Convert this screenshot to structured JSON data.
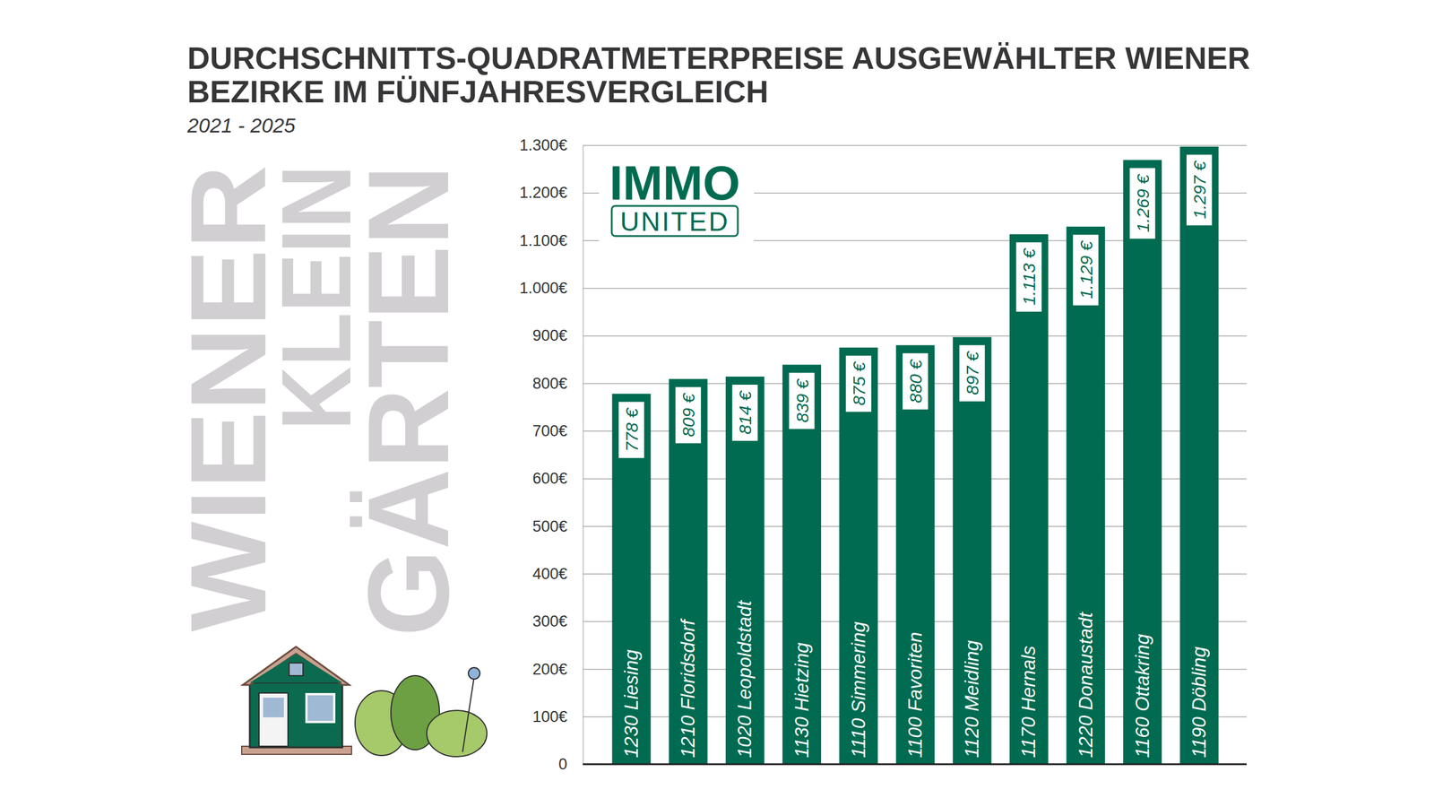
{
  "chart_data": {
    "type": "bar",
    "title": "DURCHSCHNITTS-QUADRATMETERPREISE AUSGEWÄHLTER WIENER BEZIRKE IM FÜNFJAHRESVERGLEICH",
    "subtitle": "2021 - 2025",
    "annotations": [
      "WIENER",
      "KLEIN",
      "GÄRTEN",
      "IMMO",
      "UNITED"
    ],
    "categories": [
      "1230 Liesing",
      "1210 Floridsdorf",
      "1020 Leopoldstadt",
      "1130 Hietzing",
      "1110 Simmering",
      "1100 Favoriten",
      "1120 Meidling",
      "1170 Hernals",
      "1220 Donaustadt",
      "1160 Ottakring",
      "1190 Döbling"
    ],
    "values": [
      778,
      809,
      814,
      839,
      875,
      880,
      897,
      1113,
      1129,
      1269,
      1297
    ],
    "value_labels": [
      "778 €",
      "809 €",
      "814 €",
      "839 €",
      "875 €",
      "880 €",
      "897 €",
      "1.113 €",
      "1.129 €",
      "1.269 €",
      "1.297 €"
    ],
    "color": "#006b50",
    "ylim": [
      0,
      1300
    ],
    "yticks": [
      0,
      {
        "value": 100,
        "label": "100€"
      },
      {
        "value": 200,
        "label": "200€"
      },
      {
        "value": 300,
        "label": "300€"
      },
      {
        "value": 400,
        "label": "400€"
      },
      {
        "value": 500,
        "label": "500€"
      },
      {
        "value": 600,
        "label": "600€"
      },
      {
        "value": 700,
        "label": "700€"
      },
      {
        "value": 800,
        "label": "800€"
      },
      {
        "value": 900,
        "label": "900€"
      },
      {
        "value": 1000,
        "label": "1.000€"
      },
      {
        "value": 1100,
        "label": "1.100€"
      },
      {
        "value": 1200,
        "label": "1.200€"
      },
      {
        "value": 1300,
        "label": "1.300€"
      }
    ],
    "grid": true,
    "data_labels": true
  }
}
